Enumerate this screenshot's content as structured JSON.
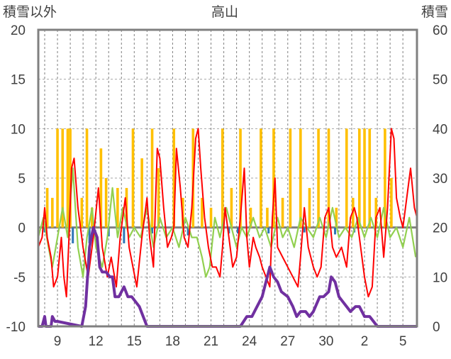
{
  "chart_data": {
    "type": "line",
    "title": "高山",
    "ylabel_left": "積雪以外",
    "ylabel_right": "積雪",
    "ylim_left": [
      -10,
      20
    ],
    "ylim_right": [
      0,
      60
    ],
    "yticks_left": [
      "20",
      "15",
      "10",
      "5",
      "0",
      "-5",
      "-10"
    ],
    "yticks_right": [
      "60",
      "50",
      "40",
      "30",
      "20",
      "10",
      "0"
    ],
    "x_range": [
      7.5,
      6.6
    ],
    "x_labels": [
      "9",
      "12",
      "15",
      "18",
      "21",
      "24",
      "27",
      "30",
      "2",
      "5"
    ],
    "grid": true,
    "colors": {
      "yellow_bars": "#ffc000",
      "blue_bars": "#2e75b6",
      "red_line": "#ff0000",
      "green_line": "#92d050",
      "purple_line": "#7030a0",
      "frame": "#808080"
    },
    "series": [
      {
        "values": [
          [
            8.2,
            4
          ],
          [
            8.6,
            3
          ],
          [
            9.0,
            10
          ],
          [
            9.4,
            10
          ],
          [
            9.8,
            10
          ],
          [
            10.0,
            10
          ],
          [
            10.9,
            3
          ],
          [
            11.3,
            10
          ],
          [
            11.7,
            2
          ],
          [
            12.4,
            8
          ],
          [
            12.8,
            5
          ],
          [
            13.7,
            4
          ],
          [
            14.4,
            4
          ],
          [
            14.9,
            10
          ],
          [
            15.6,
            7
          ],
          [
            16.4,
            10
          ],
          [
            16.9,
            6
          ],
          [
            18.1,
            10
          ],
          [
            18.8,
            3
          ],
          [
            19.6,
            10
          ],
          [
            20.3,
            3
          ],
          [
            21.0,
            2
          ],
          [
            21.9,
            10
          ],
          [
            22.6,
            4
          ],
          [
            23.3,
            10
          ],
          [
            24.1,
            2
          ],
          [
            24.9,
            10
          ],
          [
            25.4,
            2
          ],
          [
            25.9,
            10
          ],
          [
            26.6,
            3
          ],
          [
            27.2,
            10
          ],
          [
            28.0,
            10
          ],
          [
            28.7,
            4
          ],
          [
            29.4,
            10
          ],
          [
            30.2,
            10
          ],
          [
            30.8,
            2
          ],
          [
            31.6,
            10
          ],
          [
            32.1,
            3
          ],
          [
            32.6,
            10
          ],
          [
            33.0,
            10
          ],
          [
            33.4,
            10
          ],
          [
            33.9,
            3
          ],
          [
            34.6,
            10
          ],
          [
            35.1,
            5
          ]
        ]
      },
      {
        "values": [
          [
            8.0,
            -0.5
          ],
          [
            10.2,
            -1.6
          ],
          [
            11.5,
            -1.6
          ],
          [
            13.0,
            -0.9
          ],
          [
            14.2,
            -1.6
          ],
          [
            16.4,
            -0.6
          ],
          [
            19.2,
            -0.8
          ],
          [
            22.4,
            -0.6
          ],
          [
            23.1,
            -0.6
          ],
          [
            25.5,
            -0.6
          ],
          [
            28.3,
            -0.5
          ],
          [
            30.7,
            -0.7
          ],
          [
            32.2,
            -0.5
          ]
        ]
      },
      {
        "values": [
          [
            7.5,
            -2
          ],
          [
            7.8,
            -1
          ],
          [
            8.0,
            2
          ],
          [
            8.2,
            -1
          ],
          [
            8.5,
            -3
          ],
          [
            8.7,
            -6
          ],
          [
            9.0,
            -5
          ],
          [
            9.3,
            -1
          ],
          [
            9.5,
            -5
          ],
          [
            9.7,
            -7
          ],
          [
            9.9,
            -1
          ],
          [
            10.1,
            6
          ],
          [
            10.3,
            7
          ],
          [
            10.6,
            2
          ],
          [
            11.0,
            -2
          ],
          [
            11.4,
            -5
          ],
          [
            11.8,
            -1
          ],
          [
            12.2,
            4
          ],
          [
            12.5,
            -2
          ],
          [
            12.9,
            -5
          ],
          [
            13.2,
            -3
          ],
          [
            13.6,
            -6
          ],
          [
            13.9,
            -1
          ],
          [
            14.3,
            3
          ],
          [
            14.6,
            -2
          ],
          [
            14.9,
            -4
          ],
          [
            15.2,
            -6
          ],
          [
            15.6,
            -1
          ],
          [
            16.0,
            3
          ],
          [
            16.2,
            -1
          ],
          [
            16.5,
            -4
          ],
          [
            16.8,
            8
          ],
          [
            17.0,
            7
          ],
          [
            17.3,
            2
          ],
          [
            17.6,
            -2
          ],
          [
            17.9,
            -1
          ],
          [
            18.1,
            0
          ],
          [
            18.3,
            8
          ],
          [
            18.6,
            4
          ],
          [
            18.9,
            -1
          ],
          [
            19.2,
            -2
          ],
          [
            19.5,
            2
          ],
          [
            19.8,
            9
          ],
          [
            20.0,
            10
          ],
          [
            20.2,
            6
          ],
          [
            20.5,
            1
          ],
          [
            20.8,
            -2
          ],
          [
            21.1,
            -4
          ],
          [
            21.4,
            -4
          ],
          [
            21.7,
            -5
          ],
          [
            21.9,
            -2
          ],
          [
            22.1,
            2
          ],
          [
            22.4,
            -1
          ],
          [
            22.7,
            -4
          ],
          [
            23.0,
            -3
          ],
          [
            23.3,
            1
          ],
          [
            23.6,
            6
          ],
          [
            23.8,
            -1
          ],
          [
            24.0,
            -4
          ],
          [
            24.3,
            -1
          ],
          [
            24.5,
            -2
          ],
          [
            24.8,
            -3
          ],
          [
            25.0,
            -4
          ],
          [
            25.3,
            -5
          ],
          [
            25.6,
            -6
          ],
          [
            25.8,
            1
          ],
          [
            26.0,
            5
          ],
          [
            26.2,
            -2
          ],
          [
            26.6,
            -3
          ],
          [
            27.0,
            -4
          ],
          [
            27.4,
            -5
          ],
          [
            27.8,
            -6
          ],
          [
            28.0,
            -3
          ],
          [
            28.3,
            2
          ],
          [
            28.6,
            -2
          ],
          [
            29.0,
            -4
          ],
          [
            29.3,
            -5
          ],
          [
            29.6,
            -4
          ],
          [
            29.9,
            1
          ],
          [
            30.2,
            2
          ],
          [
            30.5,
            -2
          ],
          [
            30.8,
            -3
          ],
          [
            31.2,
            -2
          ],
          [
            31.6,
            -4
          ],
          [
            31.9,
            1
          ],
          [
            32.2,
            2
          ],
          [
            32.4,
            1
          ],
          [
            32.7,
            -2
          ],
          [
            33.0,
            -5
          ],
          [
            33.3,
            -7
          ],
          [
            33.6,
            -6
          ],
          [
            33.9,
            1
          ],
          [
            34.2,
            2
          ],
          [
            34.5,
            -3
          ],
          [
            34.8,
            2
          ],
          [
            35.1,
            10
          ],
          [
            35.3,
            9
          ],
          [
            35.5,
            3
          ],
          [
            35.8,
            1
          ],
          [
            36.0,
            0
          ],
          [
            36.3,
            3
          ],
          [
            36.6,
            6
          ],
          [
            36.9,
            2
          ],
          [
            37.1,
            1
          ]
        ]
      },
      {
        "values": [
          [
            7.5,
            -1
          ],
          [
            7.9,
            1
          ],
          [
            8.3,
            -2
          ],
          [
            8.6,
            -4
          ],
          [
            9.0,
            -1
          ],
          [
            9.4,
            2
          ],
          [
            9.8,
            -1
          ],
          [
            10.2,
            6
          ],
          [
            10.6,
            -2
          ],
          [
            11.0,
            -5
          ],
          [
            11.3,
            -1
          ],
          [
            11.7,
            2
          ],
          [
            12.0,
            -2
          ],
          [
            12.5,
            -4
          ],
          [
            12.9,
            -1
          ],
          [
            13.3,
            4
          ],
          [
            13.7,
            -1
          ],
          [
            14.1,
            2
          ],
          [
            14.6,
            -1
          ],
          [
            15.0,
            0
          ],
          [
            15.5,
            -1
          ],
          [
            16.0,
            2
          ],
          [
            16.5,
            -2
          ],
          [
            17.0,
            1
          ],
          [
            17.5,
            -1
          ],
          [
            18.0,
            0
          ],
          [
            18.5,
            -2
          ],
          [
            19.0,
            1
          ],
          [
            19.5,
            -1
          ],
          [
            19.9,
            -1
          ],
          [
            20.3,
            -3
          ],
          [
            20.6,
            -5
          ],
          [
            20.9,
            -4
          ],
          [
            21.3,
            1
          ],
          [
            21.7,
            -1
          ],
          [
            22.2,
            2
          ],
          [
            22.6,
            0
          ],
          [
            23.0,
            -2
          ],
          [
            23.4,
            0
          ],
          [
            23.8,
            -1
          ],
          [
            24.3,
            1
          ],
          [
            24.8,
            -1
          ],
          [
            25.2,
            0
          ],
          [
            25.7,
            -2
          ],
          [
            26.2,
            1
          ],
          [
            26.6,
            -1
          ],
          [
            27.0,
            0
          ],
          [
            27.5,
            -2
          ],
          [
            28.0,
            1
          ],
          [
            28.5,
            0
          ],
          [
            29.0,
            -1
          ],
          [
            29.5,
            1
          ],
          [
            30.0,
            -1
          ],
          [
            30.5,
            2
          ],
          [
            31.0,
            -1
          ],
          [
            31.5,
            0
          ],
          [
            32.0,
            -1
          ],
          [
            32.5,
            1
          ],
          [
            33.0,
            -1
          ],
          [
            33.5,
            1
          ],
          [
            34.0,
            -1
          ],
          [
            34.5,
            2
          ],
          [
            35.0,
            -1
          ],
          [
            35.5,
            0
          ],
          [
            36.0,
            -2
          ],
          [
            36.5,
            1
          ],
          [
            37.0,
            -3
          ]
        ]
      },
      {
        "values": [
          [
            7.5,
            0
          ],
          [
            7.8,
            0
          ],
          [
            7.9,
            1
          ],
          [
            8.0,
            2
          ],
          [
            8.1,
            0
          ],
          [
            8.5,
            0
          ],
          [
            8.6,
            2
          ],
          [
            8.8,
            1
          ],
          [
            9.0,
            1
          ],
          [
            10.9,
            0
          ],
          [
            11.2,
            4
          ],
          [
            11.5,
            16
          ],
          [
            11.8,
            20
          ],
          [
            12.1,
            18
          ],
          [
            12.3,
            12
          ],
          [
            12.5,
            11
          ],
          [
            12.8,
            11
          ],
          [
            13.1,
            10
          ],
          [
            13.3,
            10
          ],
          [
            13.5,
            6
          ],
          [
            13.8,
            6
          ],
          [
            14.2,
            8
          ],
          [
            14.5,
            6
          ],
          [
            14.8,
            6
          ],
          [
            15.1,
            5
          ],
          [
            15.4,
            4
          ],
          [
            15.7,
            2
          ],
          [
            16.0,
            0
          ],
          [
            16.4,
            0
          ],
          [
            16.8,
            0
          ],
          [
            23.3,
            0
          ],
          [
            23.8,
            2
          ],
          [
            24.2,
            2
          ],
          [
            24.6,
            4
          ],
          [
            25.0,
            6
          ],
          [
            25.3,
            9
          ],
          [
            25.6,
            12
          ],
          [
            25.9,
            10
          ],
          [
            26.2,
            9
          ],
          [
            26.5,
            7
          ],
          [
            27.0,
            6
          ],
          [
            27.4,
            4
          ],
          [
            27.7,
            2
          ],
          [
            28.0,
            3
          ],
          [
            28.4,
            3
          ],
          [
            28.7,
            2
          ],
          [
            29.0,
            3
          ],
          [
            29.5,
            6
          ],
          [
            29.8,
            6
          ],
          [
            30.2,
            7
          ],
          [
            30.4,
            10
          ],
          [
            30.7,
            9
          ],
          [
            31.0,
            6
          ],
          [
            31.3,
            5
          ],
          [
            31.6,
            4
          ],
          [
            31.9,
            3
          ],
          [
            32.3,
            4
          ],
          [
            32.6,
            4
          ],
          [
            33.0,
            2
          ],
          [
            33.4,
            2
          ],
          [
            33.7,
            1
          ],
          [
            34.0,
            0
          ],
          [
            34.3,
            0
          ],
          [
            34.8,
            0
          ],
          [
            37.1,
            0
          ]
        ]
      }
    ]
  }
}
